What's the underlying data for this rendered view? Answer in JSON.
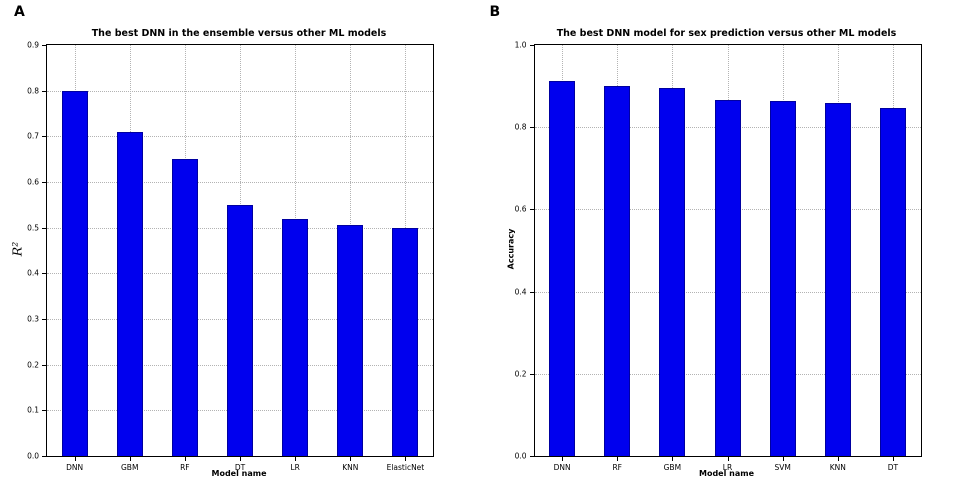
{
  "figure": {
    "background": "#ffffff",
    "bar_color": "#0000ee",
    "bar_edge_color": "#0000a0",
    "grid_color": "#b3b3b3",
    "axis_color": "#000000"
  },
  "chart_data": [
    {
      "panel": "A",
      "type": "bar",
      "title": "The best DNN in the ensemble versus other ML models",
      "xlabel": "Model name",
      "ylabel": "R²",
      "categories": [
        "DNN",
        "GBM",
        "RF",
        "DT",
        "LR",
        "KNN",
        "ElasticNet"
      ],
      "values": [
        0.8,
        0.71,
        0.65,
        0.55,
        0.52,
        0.505,
        0.5
      ],
      "ylim": [
        0,
        0.9
      ],
      "ytick_labels": [
        "0.0",
        "0.1",
        "0.2",
        "0.3",
        "0.4",
        "0.5",
        "0.6",
        "0.7",
        "0.8",
        "0.9"
      ],
      "grid": "dotted",
      "legend": "none"
    },
    {
      "panel": "B",
      "type": "bar",
      "title": "The best DNN model for sex prediction versus other ML models",
      "xlabel": "Model name",
      "ylabel": "Accuracy",
      "categories": [
        "DNN",
        "RF",
        "GBM",
        "LR",
        "SVM",
        "KNN",
        "DT"
      ],
      "values": [
        0.912,
        0.9,
        0.895,
        0.866,
        0.864,
        0.859,
        0.847
      ],
      "ylim": [
        0,
        1.0
      ],
      "ytick_labels": [
        "0.0",
        "0.2",
        "0.4",
        "0.6",
        "0.8",
        "1.0"
      ],
      "grid": "dotted",
      "legend": "none"
    }
  ]
}
